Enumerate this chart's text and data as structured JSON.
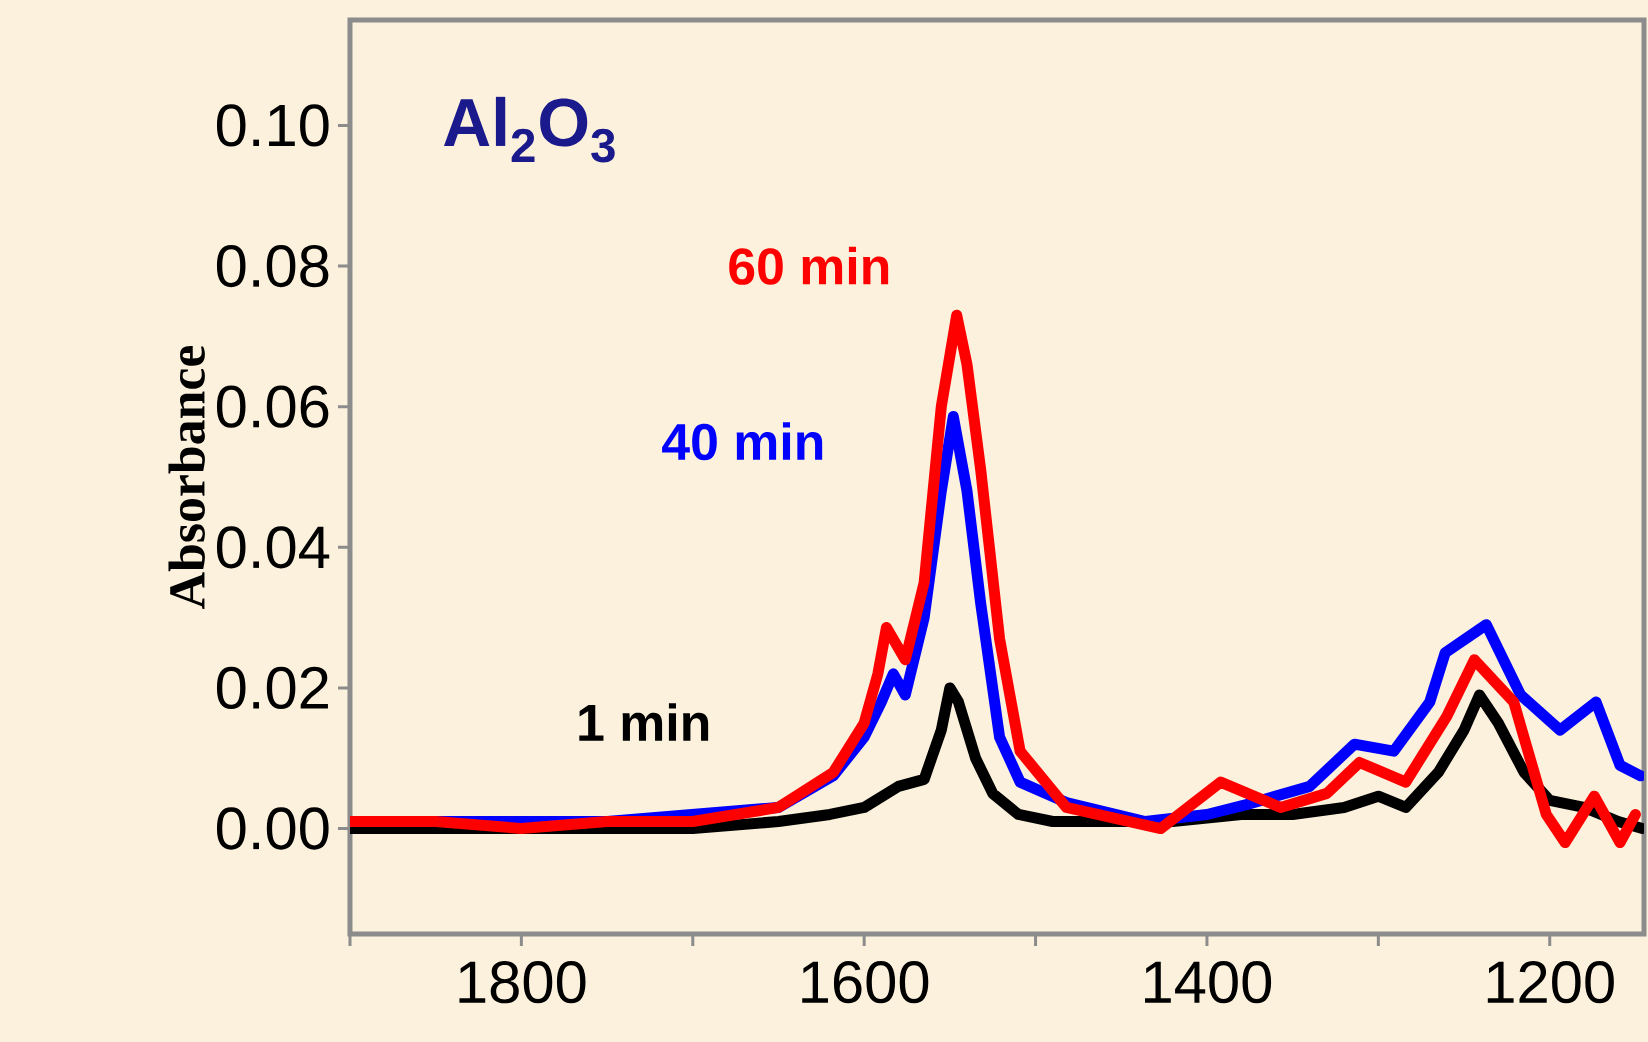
{
  "chart_data": {
    "type": "line",
    "title": "Al$_{2}$O$_{3}$",
    "ylabel": "Absorbance",
    "line_style": "solid",
    "xlim": [
      1900,
      1145
    ],
    "ylim": [
      -0.015,
      0.115
    ],
    "xticks": [
      {
        "value": 1900,
        "label": null
      },
      1800,
      {
        "value": 1700,
        "label": null
      },
      1600,
      {
        "value": 1500,
        "label": null
      },
      1400,
      {
        "value": 1300,
        "label": null
      },
      1200
    ],
    "yticks": [
      {
        "value": 0,
        "label": "0.00"
      },
      {
        "value": 0.02,
        "label": "0.02"
      },
      {
        "value": 0.04,
        "label": "0.04"
      },
      {
        "value": 0.06,
        "label": "0.06"
      },
      {
        "value": 0.08,
        "label": "0.08"
      },
      {
        "value": 0.1,
        "label": "0.10"
      }
    ],
    "series": [
      {
        "name": "1 min",
        "color": "#000000",
        "x": [
          1900,
          1850,
          1800,
          1750,
          1700,
          1650,
          1620,
          1600,
          1580,
          1565,
          1555,
          1550,
          1545,
          1535,
          1525,
          1510,
          1490,
          1460,
          1420,
          1380,
          1350,
          1320,
          1300,
          1284,
          1265,
          1250,
          1241,
          1230,
          1215,
          1200,
          1180,
          1160,
          1146
        ],
        "values": [
          0.0,
          0.0,
          0.0,
          0.0,
          0.0,
          0.001,
          0.002,
          0.003,
          0.006,
          0.007,
          0.014,
          0.02,
          0.018,
          0.01,
          0.005,
          0.002,
          0.001,
          0.001,
          0.001,
          0.002,
          0.002,
          0.003,
          0.0046,
          0.003,
          0.008,
          0.014,
          0.019,
          0.015,
          0.008,
          0.004,
          0.003,
          0.001,
          0.0
        ]
      },
      {
        "name": "40 min",
        "color": "#0000ff",
        "x": [
          1850,
          1800,
          1750,
          1700,
          1650,
          1618,
          1600,
          1590,
          1583,
          1576,
          1565,
          1555,
          1548,
          1540,
          1532,
          1521,
          1509,
          1482,
          1436,
          1400,
          1377,
          1340,
          1314,
          1291,
          1270,
          1261,
          1237,
          1217,
          1194,
          1173,
          1159,
          1147
        ],
        "values": [
          0.001,
          0.001,
          0.001,
          0.002,
          0.003,
          0.0075,
          0.013,
          0.018,
          0.022,
          0.019,
          0.03,
          0.048,
          0.0586,
          0.048,
          0.032,
          0.013,
          0.0066,
          0.0037,
          0.001,
          0.002,
          0.0034,
          0.006,
          0.012,
          0.011,
          0.018,
          0.025,
          0.029,
          0.019,
          0.014,
          0.018,
          0.009,
          0.0075
        ]
      },
      {
        "name": "60 min",
        "color": "#ff0000",
        "x": [
          1900,
          1850,
          1800,
          1750,
          1700,
          1650,
          1618,
          1600,
          1592,
          1587,
          1576,
          1565,
          1555,
          1546,
          1540,
          1532,
          1521,
          1509,
          1482,
          1427,
          1392,
          1357,
          1330,
          1311,
          1284,
          1260,
          1244,
          1221,
          1202,
          1191,
          1174,
          1159,
          1150
        ],
        "values": [
          0.001,
          0.001,
          0.0,
          0.001,
          0.001,
          0.003,
          0.008,
          0.015,
          0.022,
          0.0286,
          0.024,
          0.035,
          0.06,
          0.073,
          0.066,
          0.051,
          0.027,
          0.011,
          0.003,
          0.0,
          0.0066,
          0.003,
          0.005,
          0.0094,
          0.0066,
          0.016,
          0.024,
          0.018,
          0.002,
          -0.002,
          0.0046,
          -0.002,
          0.002
        ]
      }
    ]
  }
}
